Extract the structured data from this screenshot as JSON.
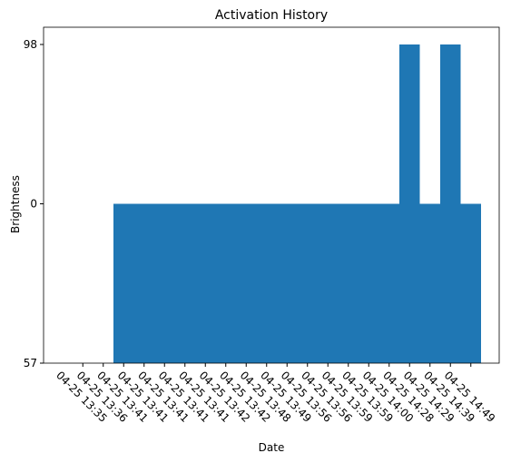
{
  "chart_data": {
    "type": "bar",
    "title": "Activation History",
    "xlabel": "Date",
    "ylabel": "Brightness",
    "categories": [
      "04-25 13:35",
      "04-25 13:36",
      "04-25 13:41",
      "04-25 13:41",
      "04-25 13:41",
      "04-25 13:41",
      "04-25 13:41",
      "04-25 13:42",
      "04-25 13:42",
      "04-25 13:48",
      "04-25 13:49",
      "04-25 13:56",
      "04-25 13:56",
      "04-25 13:59",
      "04-25 13:59",
      "04-25 14:00",
      "04-25 14:28",
      "04-25 14:29",
      "04-25 14:39",
      "04-25 14:49"
    ],
    "ycategories": [
      "57",
      "0",
      "98"
    ],
    "values": [
      "57",
      "57",
      "0",
      "0",
      "0",
      "0",
      "0",
      "0",
      "0",
      "0",
      "0",
      "0",
      "0",
      "0",
      "0",
      "0",
      "98",
      "0",
      "98",
      "0"
    ],
    "color": "#1f77b4"
  }
}
